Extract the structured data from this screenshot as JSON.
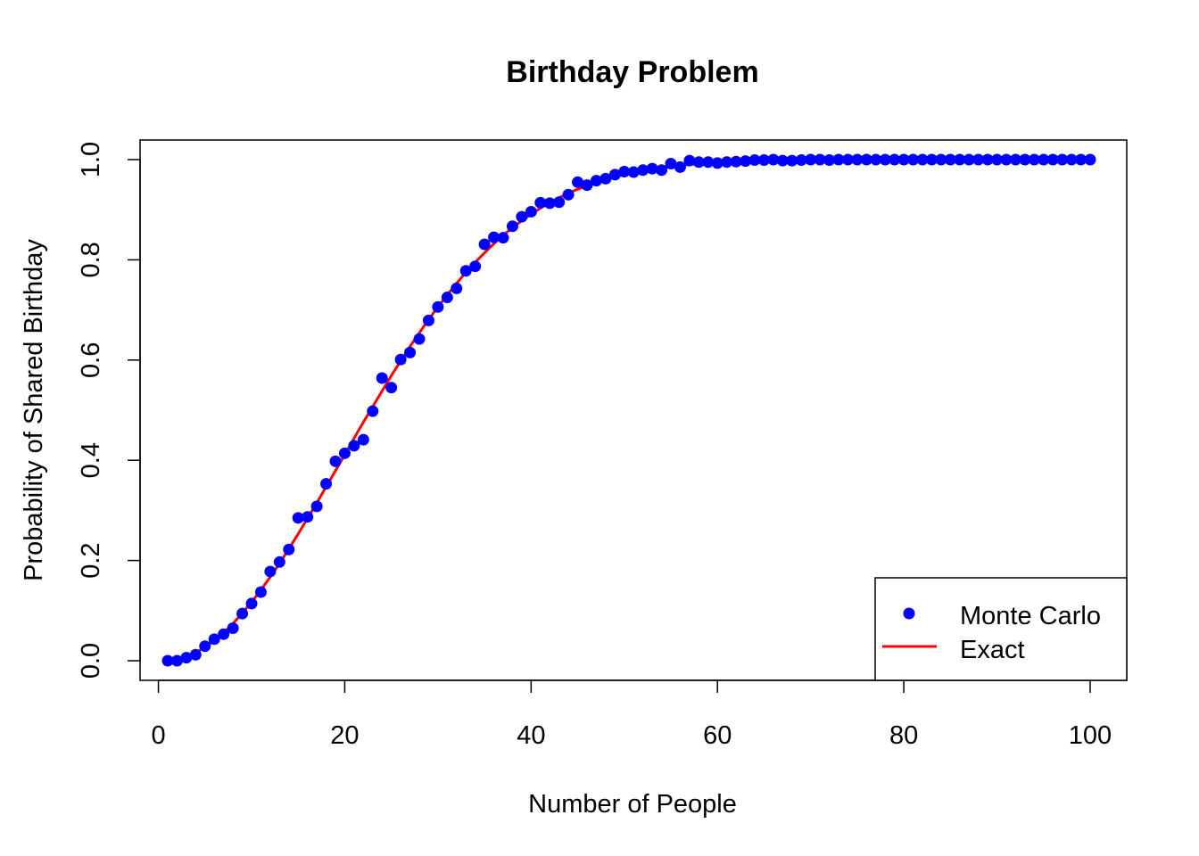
{
  "chart_data": {
    "type": "scatter",
    "title": "Birthday Problem",
    "xlabel": "Number of People",
    "ylabel": "Probability of Shared Birthday",
    "xlim": [
      1,
      100
    ],
    "ylim": [
      0,
      1
    ],
    "x_ticks": [
      0,
      20,
      40,
      60,
      80,
      100
    ],
    "y_ticks": [
      0.0,
      0.2,
      0.4,
      0.6,
      0.8,
      1.0
    ],
    "x_tick_labels": [
      "0",
      "20",
      "40",
      "60",
      "80",
      "100"
    ],
    "y_tick_labels": [
      "0.0",
      "0.2",
      "0.4",
      "0.6",
      "0.8",
      "1.0"
    ],
    "grid": false,
    "legend_position": "bottom-right",
    "series": [
      {
        "name": "Monte Carlo",
        "kind": "points",
        "color": "#0000ff",
        "x": [
          1,
          2,
          3,
          4,
          5,
          6,
          7,
          8,
          9,
          10,
          11,
          12,
          13,
          14,
          15,
          16,
          17,
          18,
          19,
          20,
          21,
          22,
          23,
          24,
          25,
          26,
          27,
          28,
          29,
          30,
          31,
          32,
          33,
          34,
          35,
          36,
          37,
          38,
          39,
          40,
          41,
          42,
          43,
          44,
          45,
          46,
          47,
          48,
          49,
          50,
          51,
          52,
          53,
          54,
          55,
          56,
          57,
          58,
          59,
          60,
          61,
          62,
          63,
          64,
          65,
          66,
          67,
          68,
          69,
          70,
          71,
          72,
          73,
          74,
          75,
          76,
          77,
          78,
          79,
          80,
          81,
          82,
          83,
          84,
          85,
          86,
          87,
          88,
          89,
          90,
          91,
          92,
          93,
          94,
          95,
          96,
          97,
          98,
          99,
          100
        ],
        "y": [
          0.0,
          0.0,
          0.006,
          0.012,
          0.029,
          0.043,
          0.053,
          0.065,
          0.094,
          0.114,
          0.137,
          0.178,
          0.197,
          0.222,
          0.285,
          0.287,
          0.308,
          0.353,
          0.398,
          0.414,
          0.429,
          0.441,
          0.498,
          0.564,
          0.545,
          0.601,
          0.615,
          0.642,
          0.679,
          0.706,
          0.725,
          0.743,
          0.778,
          0.787,
          0.831,
          0.845,
          0.844,
          0.867,
          0.886,
          0.896,
          0.914,
          0.913,
          0.915,
          0.93,
          0.955,
          0.949,
          0.958,
          0.962,
          0.97,
          0.976,
          0.975,
          0.979,
          0.982,
          0.979,
          0.992,
          0.985,
          0.998,
          0.995,
          0.995,
          0.993,
          0.995,
          0.996,
          0.997,
          0.999,
          0.999,
          1.0,
          0.998,
          0.998,
          0.999,
          1.0,
          1.0,
          0.999,
          1.0,
          1.0,
          1.0,
          1.0,
          1.0,
          1.0,
          1.0,
          1.0,
          1.0,
          1.0,
          1.0,
          1.0,
          1.0,
          1.0,
          1.0,
          1.0,
          1.0,
          1.0,
          1.0,
          1.0,
          1.0,
          1.0,
          1.0,
          1.0,
          1.0,
          1.0,
          1.0,
          1.0
        ]
      },
      {
        "name": "Exact",
        "kind": "line",
        "color": "#ff0000",
        "x": [
          1,
          2,
          3,
          4,
          5,
          6,
          7,
          8,
          9,
          10,
          11,
          12,
          13,
          14,
          15,
          16,
          17,
          18,
          19,
          20,
          21,
          22,
          23,
          24,
          25,
          26,
          27,
          28,
          29,
          30,
          31,
          32,
          33,
          34,
          35,
          36,
          37,
          38,
          39,
          40,
          41,
          42,
          43,
          44,
          45,
          46,
          47,
          48,
          49,
          50,
          51,
          52,
          53,
          54,
          55,
          56,
          57,
          58,
          59,
          60,
          61,
          62,
          63,
          64,
          65,
          66,
          67,
          68,
          69,
          70,
          71,
          72,
          73,
          74,
          75,
          76,
          77,
          78,
          79,
          80,
          81,
          82,
          83,
          84,
          85,
          86,
          87,
          88,
          89,
          90,
          91,
          92,
          93,
          94,
          95,
          96,
          97,
          98,
          99,
          100
        ],
        "y": [
          0.0,
          0.003,
          0.008,
          0.016,
          0.027,
          0.04,
          0.056,
          0.074,
          0.095,
          0.117,
          0.141,
          0.167,
          0.194,
          0.223,
          0.253,
          0.284,
          0.315,
          0.347,
          0.379,
          0.411,
          0.444,
          0.476,
          0.507,
          0.538,
          0.569,
          0.598,
          0.627,
          0.654,
          0.681,
          0.706,
          0.73,
          0.753,
          0.775,
          0.795,
          0.814,
          0.832,
          0.849,
          0.864,
          0.878,
          0.891,
          0.903,
          0.914,
          0.924,
          0.933,
          0.941,
          0.948,
          0.955,
          0.961,
          0.966,
          0.97,
          0.974,
          0.978,
          0.981,
          0.984,
          0.986,
          0.988,
          0.99,
          0.992,
          0.993,
          0.994,
          0.995,
          0.996,
          0.997,
          0.997,
          0.998,
          0.998,
          0.998,
          0.999,
          0.999,
          0.999,
          0.999,
          0.999,
          1.0,
          1.0,
          1.0,
          1.0,
          1.0,
          1.0,
          1.0,
          1.0,
          1.0,
          1.0,
          1.0,
          1.0,
          1.0,
          1.0,
          1.0,
          1.0,
          1.0,
          1.0,
          1.0,
          1.0,
          1.0,
          1.0,
          1.0,
          1.0,
          1.0,
          1.0,
          1.0,
          1.0
        ]
      }
    ]
  }
}
